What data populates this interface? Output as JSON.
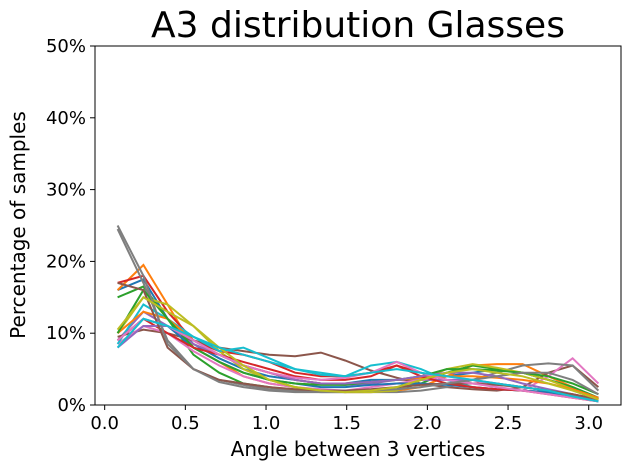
{
  "chart_data": {
    "type": "line",
    "title": "A3 distribution Glasses",
    "xlabel": "Angle between 3 vertices",
    "ylabel": "Percentage of samples",
    "xlim": [
      -0.06,
      3.2
    ],
    "ylim": [
      0,
      0.5
    ],
    "xticks": [
      0.0,
      0.5,
      1.0,
      1.5,
      2.0,
      2.5,
      3.0
    ],
    "xtick_labels": [
      "0.0",
      "0.5",
      "1.0",
      "1.5",
      "2.0",
      "2.5",
      "3.0"
    ],
    "yticks": [
      0,
      0.1,
      0.2,
      0.3,
      0.4,
      0.5
    ],
    "ytick_labels": [
      "0%",
      "10%",
      "20%",
      "30%",
      "40%",
      "50%"
    ],
    "grid": false,
    "legend": "none",
    "x": [
      0.08,
      0.24,
      0.39,
      0.55,
      0.71,
      0.86,
      1.02,
      1.18,
      1.34,
      1.49,
      1.65,
      1.81,
      1.96,
      2.12,
      2.28,
      2.43,
      2.59,
      2.75,
      2.9,
      3.06
    ],
    "series": [
      {
        "color": "#1f77b4",
        "values": [
          0.16,
          0.175,
          0.12,
          0.085,
          0.065,
          0.05,
          0.04,
          0.035,
          0.03,
          0.03,
          0.035,
          0.035,
          0.035,
          0.04,
          0.045,
          0.05,
          0.045,
          0.035,
          0.025,
          0.01
        ]
      },
      {
        "color": "#ff7f0e",
        "values": [
          0.16,
          0.195,
          0.14,
          0.08,
          0.06,
          0.04,
          0.03,
          0.025,
          0.02,
          0.018,
          0.018,
          0.02,
          0.025,
          0.04,
          0.055,
          0.057,
          0.057,
          0.04,
          0.025,
          0.008
        ]
      },
      {
        "color": "#2ca02c",
        "values": [
          0.15,
          0.165,
          0.12,
          0.07,
          0.045,
          0.03,
          0.025,
          0.02,
          0.02,
          0.02,
          0.02,
          0.022,
          0.03,
          0.045,
          0.055,
          0.05,
          0.045,
          0.035,
          0.025,
          0.01
        ]
      },
      {
        "color": "#d62728",
        "values": [
          0.17,
          0.18,
          0.13,
          0.09,
          0.075,
          0.07,
          0.06,
          0.045,
          0.04,
          0.04,
          0.045,
          0.055,
          0.045,
          0.035,
          0.03,
          0.03,
          0.025,
          0.02,
          0.015,
          0.008
        ]
      },
      {
        "color": "#9467bd",
        "values": [
          0.09,
          0.13,
          0.11,
          0.085,
          0.07,
          0.055,
          0.045,
          0.035,
          0.03,
          0.028,
          0.03,
          0.035,
          0.035,
          0.035,
          0.035,
          0.03,
          0.025,
          0.02,
          0.012,
          0.005
        ]
      },
      {
        "color": "#8c564b",
        "values": [
          0.095,
          0.105,
          0.1,
          0.09,
          0.08,
          0.075,
          0.07,
          0.068,
          0.073,
          0.062,
          0.048,
          0.038,
          0.03,
          0.025,
          0.022,
          0.02,
          0.025,
          0.045,
          0.055,
          0.025
        ]
      },
      {
        "color": "#e377c2",
        "values": [
          0.085,
          0.11,
          0.1,
          0.075,
          0.055,
          0.04,
          0.03,
          0.025,
          0.022,
          0.02,
          0.025,
          0.03,
          0.035,
          0.04,
          0.035,
          0.025,
          0.02,
          0.04,
          0.065,
          0.03
        ]
      },
      {
        "color": "#7f7f7f",
        "values": [
          0.245,
          0.17,
          0.09,
          0.05,
          0.035,
          0.028,
          0.022,
          0.02,
          0.018,
          0.018,
          0.018,
          0.018,
          0.02,
          0.025,
          0.035,
          0.045,
          0.055,
          0.058,
          0.055,
          0.02
        ]
      },
      {
        "color": "#bcbd22",
        "values": [
          0.1,
          0.15,
          0.14,
          0.11,
          0.075,
          0.05,
          0.035,
          0.025,
          0.02,
          0.018,
          0.018,
          0.02,
          0.035,
          0.05,
          0.057,
          0.052,
          0.045,
          0.035,
          0.022,
          0.008
        ]
      },
      {
        "color": "#17becf",
        "values": [
          0.085,
          0.14,
          0.12,
          0.095,
          0.075,
          0.08,
          0.065,
          0.05,
          0.045,
          0.04,
          0.055,
          0.06,
          0.05,
          0.035,
          0.025,
          0.022,
          0.02,
          0.018,
          0.012,
          0.005
        ]
      },
      {
        "color": "#1f77b4",
        "values": [
          0.09,
          0.12,
          0.11,
          0.08,
          0.06,
          0.045,
          0.035,
          0.03,
          0.025,
          0.025,
          0.028,
          0.03,
          0.03,
          0.028,
          0.025,
          0.022,
          0.02,
          0.018,
          0.012,
          0.005
        ]
      },
      {
        "color": "#ff7f0e",
        "values": [
          0.1,
          0.13,
          0.12,
          0.09,
          0.07,
          0.055,
          0.045,
          0.035,
          0.03,
          0.03,
          0.032,
          0.035,
          0.038,
          0.04,
          0.04,
          0.038,
          0.035,
          0.03,
          0.022,
          0.01
        ]
      },
      {
        "color": "#2ca02c",
        "values": [
          0.1,
          0.16,
          0.12,
          0.08,
          0.06,
          0.045,
          0.035,
          0.03,
          0.028,
          0.028,
          0.032,
          0.035,
          0.04,
          0.05,
          0.05,
          0.048,
          0.045,
          0.04,
          0.03,
          0.015
        ]
      },
      {
        "color": "#d62728",
        "values": [
          0.09,
          0.12,
          0.1,
          0.08,
          0.07,
          0.06,
          0.05,
          0.04,
          0.035,
          0.035,
          0.04,
          0.055,
          0.04,
          0.03,
          0.025,
          0.022,
          0.02,
          0.015,
          0.01,
          0.005
        ]
      },
      {
        "color": "#9467bd",
        "values": [
          0.08,
          0.11,
          0.11,
          0.09,
          0.07,
          0.055,
          0.045,
          0.035,
          0.03,
          0.03,
          0.032,
          0.035,
          0.04,
          0.045,
          0.045,
          0.04,
          0.03,
          0.022,
          0.015,
          0.005
        ]
      },
      {
        "color": "#8c564b",
        "values": [
          0.17,
          0.16,
          0.08,
          0.05,
          0.035,
          0.03,
          0.025,
          0.022,
          0.02,
          0.02,
          0.022,
          0.025,
          0.028,
          0.03,
          0.03,
          0.028,
          0.025,
          0.02,
          0.015,
          0.008
        ]
      },
      {
        "color": "#e377c2",
        "values": [
          0.09,
          0.12,
          0.11,
          0.09,
          0.07,
          0.055,
          0.045,
          0.038,
          0.035,
          0.038,
          0.045,
          0.06,
          0.045,
          0.035,
          0.03,
          0.025,
          0.02,
          0.015,
          0.01,
          0.005
        ]
      },
      {
        "color": "#7f7f7f",
        "values": [
          0.25,
          0.18,
          0.085,
          0.05,
          0.032,
          0.025,
          0.02,
          0.018,
          0.018,
          0.018,
          0.02,
          0.022,
          0.025,
          0.03,
          0.035,
          0.04,
          0.045,
          0.045,
          0.035,
          0.015
        ]
      },
      {
        "color": "#bcbd22",
        "values": [
          0.105,
          0.15,
          0.13,
          0.11,
          0.08,
          0.055,
          0.035,
          0.025,
          0.02,
          0.018,
          0.02,
          0.025,
          0.035,
          0.045,
          0.05,
          0.045,
          0.04,
          0.03,
          0.02,
          0.008
        ]
      },
      {
        "color": "#17becf",
        "values": [
          0.08,
          0.12,
          0.11,
          0.095,
          0.08,
          0.07,
          0.06,
          0.05,
          0.042,
          0.04,
          0.045,
          0.05,
          0.045,
          0.04,
          0.035,
          0.03,
          0.025,
          0.02,
          0.012,
          0.005
        ]
      }
    ]
  }
}
